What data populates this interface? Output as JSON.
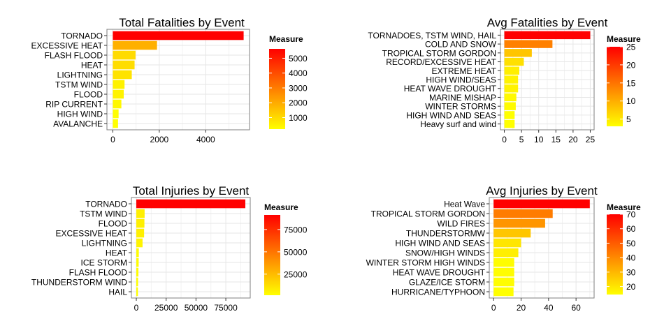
{
  "chart_data": [
    {
      "type": "bar",
      "orientation": "horizontal",
      "title": "Total Fatalities by Event",
      "categories": [
        "TORNADO",
        "EXCESSIVE HEAT",
        "FLASH FLOOD",
        "HEAT",
        "LIGHTNING",
        "TSTM WIND",
        "FLOOD",
        "RIP CURRENT",
        "HIGH WIND",
        "AVALANCHE"
      ],
      "values": [
        5633,
        1903,
        978,
        937,
        816,
        504,
        470,
        368,
        248,
        224
      ],
      "xlim": [
        0,
        5633
      ],
      "xticks": [
        0,
        2000,
        4000
      ],
      "grid": true,
      "legend": {
        "title": "Measure",
        "ticks": [
          1000,
          2000,
          3000,
          4000,
          5000
        ],
        "range": [
          224,
          5633
        ],
        "placement": "right"
      },
      "colors": {
        "low": "#FFFF00",
        "high": "#FF0000"
      }
    },
    {
      "type": "bar",
      "orientation": "horizontal",
      "title": "Avg Fatalities by Event",
      "categories": [
        "TORNADOES, TSTM WIND, HAIL",
        "COLD AND SNOW",
        "TROPICAL STORM GORDON",
        "RECORD/EXCESSIVE HEAT",
        "EXTREME HEAT",
        "HIGH WIND/SEAS",
        "HEAT WAVE DROUGHT",
        "MARINE MISHAP",
        "WINTER STORMS",
        "HIGH WIND AND SEAS",
        "Heavy surf and wind"
      ],
      "values": [
        25,
        14,
        8,
        5.67,
        4.36,
        4,
        4,
        3.5,
        3.33,
        3,
        3
      ],
      "xlim": [
        0,
        25
      ],
      "xticks": [
        0,
        5,
        10,
        15,
        20,
        25
      ],
      "grid": true,
      "legend": {
        "title": "Measure",
        "ticks": [
          5,
          10,
          15,
          20,
          25
        ],
        "range": [
          3,
          25
        ],
        "placement": "right"
      },
      "colors": {
        "low": "#FFFF00",
        "high": "#FF0000"
      }
    },
    {
      "type": "bar",
      "orientation": "horizontal",
      "title": "Total Injuries by Event",
      "categories": [
        "TORNADO",
        "TSTM WIND",
        "FLOOD",
        "EXCESSIVE HEAT",
        "LIGHTNING",
        "HEAT",
        "ICE STORM",
        "FLASH FLOOD",
        "THUNDERSTORM WIND",
        "HAIL"
      ],
      "values": [
        91346,
        6957,
        6789,
        6525,
        5230,
        2100,
        1975,
        1777,
        1488,
        1361
      ],
      "xlim": [
        0,
        91346
      ],
      "xticks": [
        0,
        25000,
        50000,
        75000
      ],
      "grid": true,
      "legend": {
        "title": "Measure",
        "ticks": [
          25000,
          50000,
          75000
        ],
        "range": [
          1361,
          91346
        ],
        "placement": "right"
      },
      "colors": {
        "low": "#FFFF00",
        "high": "#FF0000"
      }
    },
    {
      "type": "bar",
      "orientation": "horizontal",
      "title": "Avg Injuries by Event",
      "categories": [
        "Heat Wave",
        "TROPICAL STORM GORDON",
        "WILD FIRES",
        "THUNDERSTORMW",
        "HIGH WIND AND SEAS",
        "SNOW/HIGH WINDS",
        "WINTER STORM HIGH WINDS",
        "HEAT WAVE DROUGHT",
        "GLAZE/ICE STORM",
        "HURRICANE/TYPHOON"
      ],
      "values": [
        70,
        43,
        37.5,
        27,
        20,
        18,
        15,
        15,
        15,
        14.5
      ],
      "xlim": [
        0,
        70
      ],
      "xticks": [
        0,
        20,
        40,
        60
      ],
      "grid": true,
      "legend": {
        "title": "Measure",
        "ticks": [
          20,
          30,
          40,
          50,
          60,
          70
        ],
        "range": [
          14.5,
          70
        ],
        "placement": "right"
      },
      "colors": {
        "low": "#FFFF00",
        "high": "#FF0000"
      }
    }
  ]
}
